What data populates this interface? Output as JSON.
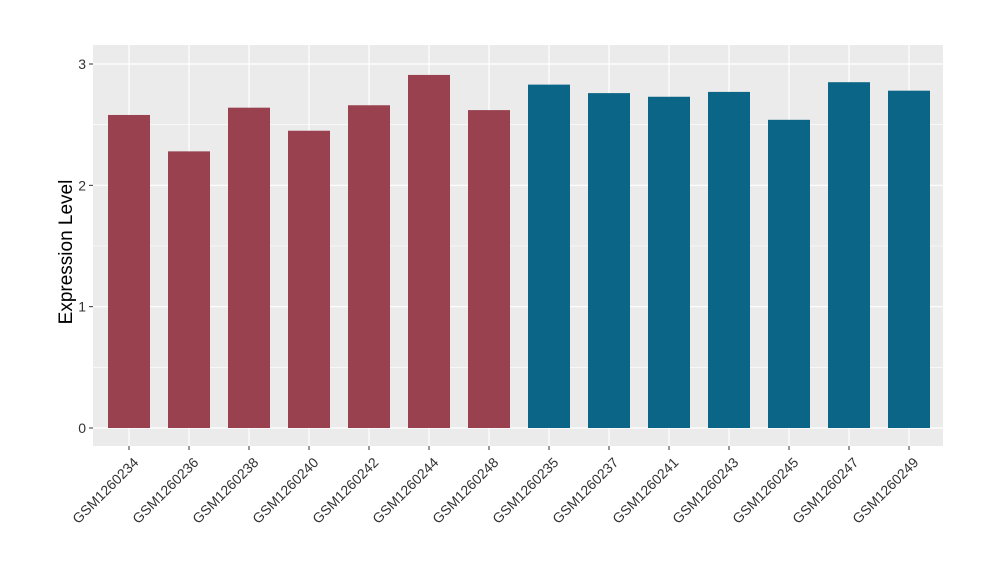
{
  "chart_data": {
    "type": "bar",
    "title": "",
    "xlabel": "",
    "ylabel": "Expression Level",
    "ylim": [
      0,
      3
    ],
    "yticks": [
      0,
      1,
      2,
      3
    ],
    "grid": true,
    "categories": [
      "GSM1260234",
      "GSM1260236",
      "GSM1260238",
      "GSM1260240",
      "GSM1260242",
      "GSM1260244",
      "GSM1260248",
      "GSM1260235",
      "GSM1260237",
      "GSM1260241",
      "GSM1260243",
      "GSM1260245",
      "GSM1260247",
      "GSM1260249"
    ],
    "values": [
      2.58,
      2.28,
      2.64,
      2.45,
      2.66,
      2.91,
      2.62,
      2.83,
      2.76,
      2.73,
      2.77,
      2.54,
      2.85,
      2.78
    ],
    "bar_colors": [
      "#99414f",
      "#99414f",
      "#99414f",
      "#99414f",
      "#99414f",
      "#99414f",
      "#99414f",
      "#0b6586",
      "#0b6586",
      "#0b6586",
      "#0b6586",
      "#0b6586",
      "#0b6586",
      "#0b6586"
    ],
    "panel_background": "#ebebeb",
    "grid_color": "#ffffff"
  }
}
